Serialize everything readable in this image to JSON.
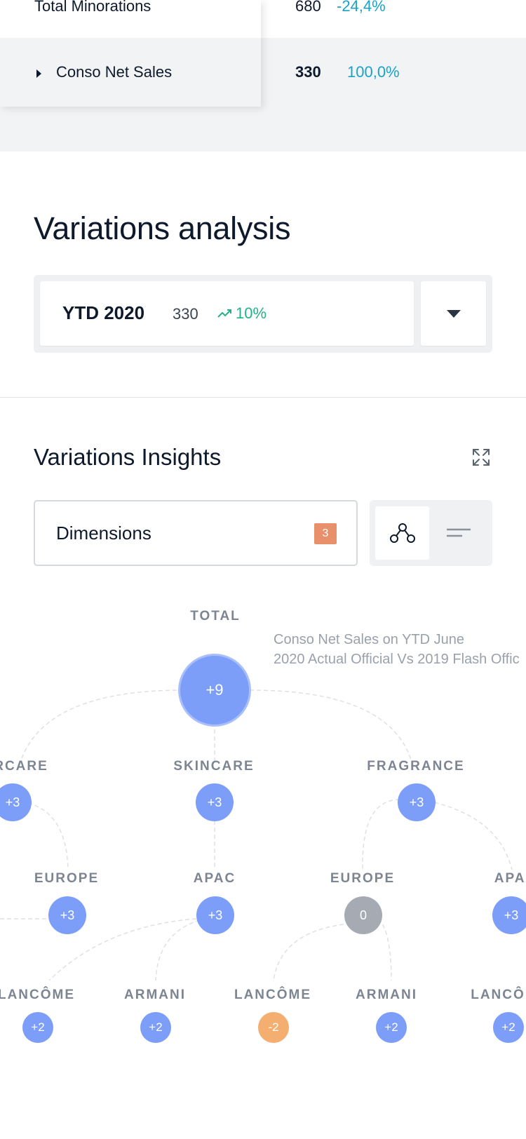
{
  "table": {
    "rows": [
      {
        "label": "Total Minorations",
        "value": "680",
        "percent": "-24,4%"
      },
      {
        "label": "Conso Net Sales",
        "value": "330",
        "percent": "100,0%"
      }
    ]
  },
  "variations_analysis": {
    "title": "Variations analysis",
    "selector": {
      "period": "YTD 2020",
      "value": "330",
      "trend": "10%"
    }
  },
  "variations_insights": {
    "title": "Variations Insights",
    "dimensions_label": "Dimensions",
    "dimensions_count": "3"
  },
  "tree": {
    "description_line1": "Conso Net Sales on YTD June",
    "description_line2": "2020 Actual Official Vs 2019 Flash Offic",
    "total": {
      "label": "TOTAL",
      "value": "+9"
    },
    "level1": [
      {
        "label": "RCARE",
        "value": "+3"
      },
      {
        "label": "SKINCARE",
        "value": "+3"
      },
      {
        "label": "FRAGRANCE",
        "value": "+3"
      }
    ],
    "level2": [
      {
        "label": "EUROPE",
        "value": "+3"
      },
      {
        "label": "APAC",
        "value": "+3"
      },
      {
        "label": "EUROPE",
        "value": "0"
      },
      {
        "label": "APAC",
        "value": "+3"
      }
    ],
    "level3": [
      {
        "label": "LANCÔME",
        "value": "+2"
      },
      {
        "label": "ARMANI",
        "value": "+2"
      },
      {
        "label": "LANCÔME",
        "value": "-2"
      },
      {
        "label": "ARMANI",
        "value": "+2"
      },
      {
        "label": "LANCÔ",
        "value": "+2"
      }
    ]
  },
  "colors": {
    "node_positive": "#7d9ef8",
    "node_neutral": "#a6abb3",
    "node_negative": "#f4ae6f",
    "percent_text": "#1aa3c8",
    "trend_up": "#23b08a",
    "badge": "#e8906a"
  },
  "icons": {
    "row_expand": "caret-right-icon",
    "dropdown": "caret-down-icon",
    "trend": "trend-up-icon",
    "expand": "expand-icon",
    "tree_view": "tree-view-icon",
    "list_view": "list-view-icon"
  }
}
